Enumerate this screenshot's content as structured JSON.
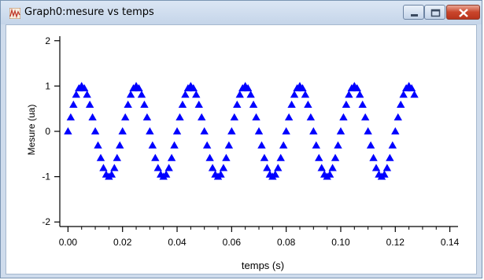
{
  "window": {
    "title": "Graph0:mesure vs temps",
    "icons": {
      "app": "graph-app-icon",
      "minimize": "minimize-icon",
      "maximize": "maximize-icon",
      "close": "close-icon"
    }
  },
  "chart_data": {
    "type": "scatter",
    "title": "",
    "xlabel": "temps (s)",
    "ylabel": "Mesure (ua)",
    "xlim": [
      -0.003,
      0.143
    ],
    "ylim": [
      -2.1,
      2.1
    ],
    "x_ticks": [
      "0.00",
      "0.02",
      "0.04",
      "0.06",
      "0.08",
      "0.10",
      "0.12",
      "0.14"
    ],
    "x_tick_values": [
      0,
      0.02,
      0.04,
      0.06,
      0.08,
      0.1,
      0.12,
      0.14
    ],
    "y_ticks": [
      "2",
      "1",
      "0",
      "-1",
      "-2"
    ],
    "y_tick_values": [
      2,
      1,
      0,
      -1,
      -2
    ],
    "grid": false,
    "marker": "triangle",
    "color": "#0000ff",
    "series": [
      {
        "x": [
          0.0,
          0.001,
          0.002,
          0.003,
          0.004,
          0.005,
          0.006,
          0.007,
          0.008,
          0.009,
          0.01,
          0.011,
          0.012,
          0.013,
          0.014,
          0.015,
          0.016,
          0.017,
          0.018,
          0.019,
          0.02,
          0.021,
          0.022,
          0.023,
          0.024,
          0.025,
          0.026,
          0.027,
          0.028,
          0.029,
          0.03,
          0.031,
          0.032,
          0.033,
          0.034,
          0.035,
          0.036,
          0.037,
          0.038,
          0.039,
          0.04,
          0.041,
          0.042,
          0.043,
          0.044,
          0.045,
          0.046,
          0.047,
          0.048,
          0.049,
          0.05,
          0.051,
          0.052,
          0.053,
          0.054,
          0.055,
          0.056,
          0.057,
          0.058,
          0.059,
          0.06,
          0.061,
          0.062,
          0.063,
          0.064,
          0.065,
          0.066,
          0.067,
          0.068,
          0.069,
          0.07,
          0.071,
          0.072,
          0.073,
          0.074,
          0.075,
          0.076,
          0.077,
          0.078,
          0.079,
          0.08,
          0.081,
          0.082,
          0.083,
          0.084,
          0.085,
          0.086,
          0.087,
          0.088,
          0.089,
          0.09,
          0.091,
          0.092,
          0.093,
          0.094,
          0.095,
          0.096,
          0.097,
          0.098,
          0.099,
          0.1,
          0.101,
          0.102,
          0.103,
          0.104,
          0.105,
          0.106,
          0.107,
          0.108,
          0.109,
          0.11,
          0.111,
          0.112,
          0.113,
          0.114,
          0.115,
          0.116,
          0.117,
          0.118,
          0.119,
          0.12,
          0.121,
          0.122,
          0.123,
          0.124,
          0.125,
          0.126,
          0.127
        ],
        "y": [
          0,
          0.309,
          0.588,
          0.809,
          0.951,
          1.0,
          0.951,
          0.809,
          0.588,
          0.309,
          0,
          -0.309,
          -0.588,
          -0.809,
          -0.951,
          -1.0,
          -0.951,
          -0.809,
          -0.588,
          -0.309,
          0,
          0.309,
          0.588,
          0.809,
          0.951,
          1.0,
          0.951,
          0.809,
          0.588,
          0.309,
          0,
          -0.309,
          -0.588,
          -0.809,
          -0.951,
          -1.0,
          -0.951,
          -0.809,
          -0.588,
          -0.309,
          0,
          0.309,
          0.588,
          0.809,
          0.951,
          1.0,
          0.951,
          0.809,
          0.588,
          0.309,
          0,
          -0.309,
          -0.588,
          -0.809,
          -0.951,
          -1.0,
          -0.951,
          -0.809,
          -0.588,
          -0.309,
          0,
          0.309,
          0.588,
          0.809,
          0.951,
          1.0,
          0.951,
          0.809,
          0.588,
          0.309,
          0,
          -0.309,
          -0.588,
          -0.809,
          -0.951,
          -1.0,
          -0.951,
          -0.809,
          -0.588,
          -0.309,
          0,
          0.309,
          0.588,
          0.809,
          0.951,
          1.0,
          0.951,
          0.809,
          0.588,
          0.309,
          0,
          -0.309,
          -0.588,
          -0.809,
          -0.951,
          -1.0,
          -0.951,
          -0.809,
          -0.588,
          -0.309,
          0,
          0.309,
          0.588,
          0.809,
          0.951,
          1.0,
          0.951,
          0.809,
          0.588,
          0.309,
          0,
          -0.309,
          -0.588,
          -0.809,
          -0.951,
          -1.0,
          -0.951,
          -0.809,
          -0.588,
          -0.309,
          0,
          0.309,
          0.588,
          0.809,
          0.951,
          1.0,
          0.951,
          0.809
        ]
      }
    ]
  }
}
